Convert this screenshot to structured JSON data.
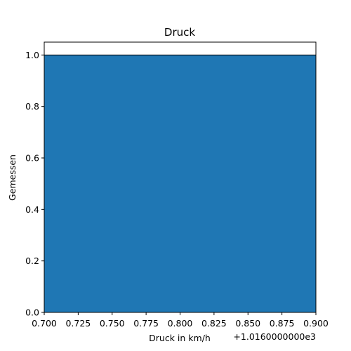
{
  "chart_data": {
    "type": "bar",
    "title": "Druck",
    "xlabel": "Druck in km/h",
    "ylabel": "Gemessen",
    "x_offset_label": "+1.0160000000e3",
    "bars": [
      {
        "x_start": 1016.7,
        "x_end": 1016.9,
        "value": 1.0
      }
    ],
    "xlim": [
      1016.7,
      1016.9
    ],
    "ylim": [
      0.0,
      1.05
    ],
    "x_ticks": [
      0.7,
      0.725,
      0.75,
      0.775,
      0.8,
      0.825,
      0.85,
      0.875,
      0.9
    ],
    "x_tick_labels": [
      "0.700",
      "0.725",
      "0.750",
      "0.775",
      "0.800",
      "0.825",
      "0.850",
      "0.875",
      "0.900"
    ],
    "y_ticks": [
      0.0,
      0.2,
      0.4,
      0.6,
      0.8,
      1.0
    ],
    "y_tick_labels": [
      "0.0",
      "0.2",
      "0.4",
      "0.6",
      "0.8",
      "1.0"
    ],
    "grid": false,
    "bar_color": "#1f77b4",
    "edge_color": "#000000"
  }
}
